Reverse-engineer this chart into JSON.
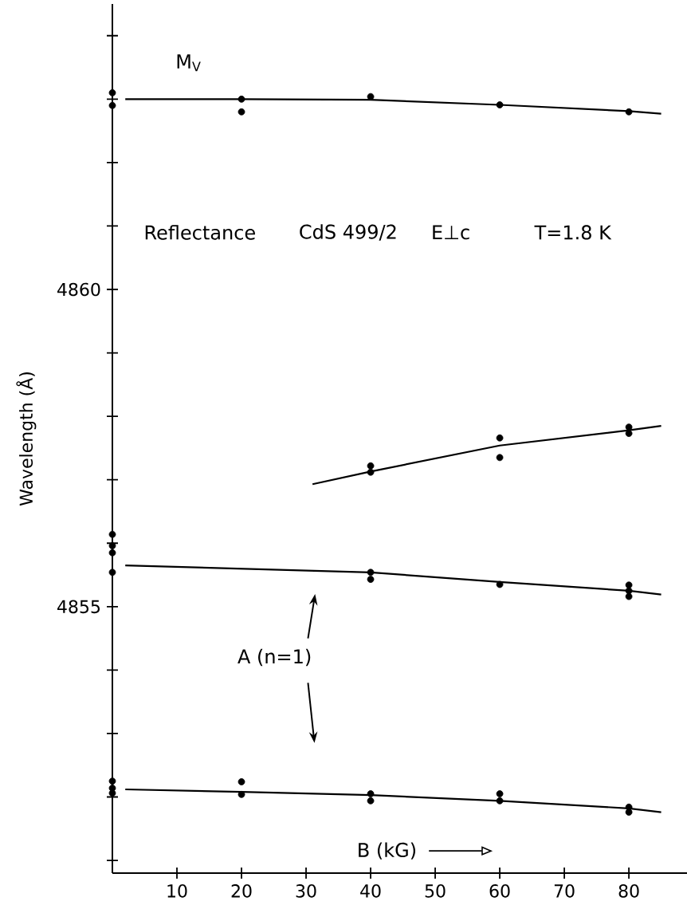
{
  "chart_data": {
    "type": "scatter",
    "xlabel": "B (kG)",
    "ylabel": "Wavelength (Å)",
    "annotations": [
      "Reflectance",
      "CdS 499/2",
      "E⊥c",
      "T=1.8 K",
      "A (n=1)"
    ],
    "xlim": [
      0,
      89
    ],
    "ylim": [
      4850.8,
      4864.5
    ],
    "xticks": [
      10,
      20,
      30,
      40,
      50,
      60,
      70,
      80
    ],
    "yticks": [
      {
        "value": 4851,
        "label": null
      },
      {
        "value": 4852,
        "label": null
      },
      {
        "value": 4853,
        "label": null
      },
      {
        "value": 4854,
        "label": null
      },
      4855,
      {
        "value": 4856,
        "label": null
      },
      {
        "value": 4857,
        "label": null
      },
      {
        "value": 4858,
        "label": null
      },
      {
        "value": 4859,
        "label": null
      },
      4860,
      {
        "value": 4861,
        "label": null
      },
      {
        "value": 4862,
        "label": null
      },
      {
        "value": 4863,
        "label": null
      },
      {
        "value": 4864,
        "label": null
      }
    ],
    "series": [
      {
        "type": "scatter",
        "marker": "circle",
        "color": "#000000",
        "x": [
          0,
          0,
          20,
          20,
          40,
          60,
          80
        ],
        "values": [
          4863.1,
          4862.9,
          4863.0,
          4862.8,
          4863.04,
          4862.91,
          4862.8
        ]
      },
      {
        "type": "line",
        "name": "M$_{V}$",
        "color": "#000000",
        "marker": "none",
        "x": [
          2,
          20,
          40,
          60,
          80,
          85
        ],
        "values": [
          4863.0,
          4863.0,
          4862.99,
          4862.91,
          4862.81,
          4862.77
        ]
      },
      {
        "type": "scatter",
        "marker": "circle",
        "color": "#000000",
        "x": [
          40,
          40,
          60,
          60,
          80,
          80
        ],
        "values": [
          4857.22,
          4857.12,
          4857.66,
          4857.35,
          4857.83,
          4857.73
        ]
      },
      {
        "type": "line",
        "color": "#000000",
        "marker": "none",
        "x": [
          31,
          40,
          60,
          80,
          85
        ],
        "values": [
          4856.93,
          4857.13,
          4857.54,
          4857.78,
          4857.85
        ]
      },
      {
        "type": "scatter",
        "marker": "circle",
        "color": "#000000",
        "x": [
          0,
          0,
          0,
          0,
          40,
          40,
          60,
          80,
          80,
          80
        ],
        "values": [
          4856.14,
          4855.96,
          4855.85,
          4855.54,
          4855.54,
          4855.43,
          4855.35,
          4855.34,
          4855.25,
          4855.16
        ]
      },
      {
        "type": "line",
        "color": "#000000",
        "marker": "none",
        "x": [
          2,
          40,
          60,
          80,
          85
        ],
        "values": [
          4855.65,
          4855.54,
          4855.39,
          4855.25,
          4855.19
        ]
      },
      {
        "type": "scatter",
        "marker": "circle",
        "color": "#000000",
        "x": [
          0,
          0,
          0,
          20,
          20,
          40,
          40,
          60,
          60,
          80,
          80
        ],
        "values": [
          4852.25,
          4852.14,
          4852.06,
          4852.24,
          4852.04,
          4852.05,
          4851.94,
          4852.05,
          4851.94,
          4851.84,
          4851.76
        ]
      },
      {
        "type": "line",
        "color": "#000000",
        "marker": "none",
        "x": [
          2,
          20,
          40,
          60,
          80,
          85
        ],
        "values": [
          4852.12,
          4852.08,
          4852.03,
          4851.94,
          4851.82,
          4851.76
        ]
      }
    ]
  }
}
